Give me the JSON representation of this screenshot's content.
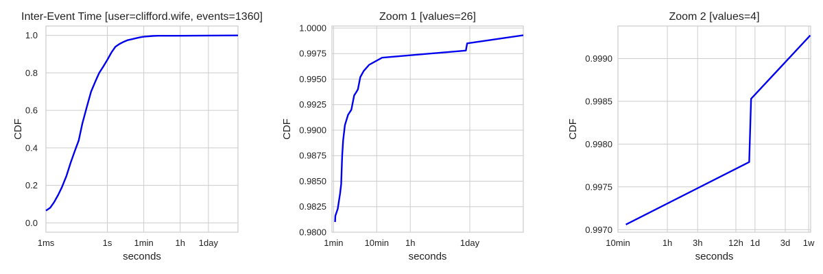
{
  "chart_data": [
    {
      "type": "line",
      "title": "Inter-Event Time [user=clifford.wife, events=1360]",
      "xlabel": "seconds",
      "ylabel": "CDF",
      "x_scale": "log",
      "xlim": [
        0.001,
        2400000
      ],
      "ylim": [
        -0.05,
        1.05
      ],
      "x_ticks": [
        {
          "label": "1ms",
          "value": 0.001
        },
        {
          "label": "1s",
          "value": 1
        },
        {
          "label": "1min",
          "value": 60
        },
        {
          "label": "1h",
          "value": 3600
        },
        {
          "label": "1day",
          "value": 86400
        }
      ],
      "y_ticks": [
        {
          "label": "0.0",
          "value": 0.0
        },
        {
          "label": "0.2",
          "value": 0.2
        },
        {
          "label": "0.4",
          "value": 0.4
        },
        {
          "label": "0.6",
          "value": 0.6
        },
        {
          "label": "0.8",
          "value": 0.8
        },
        {
          "label": "1.0",
          "value": 1.0
        }
      ],
      "grid": true,
      "color": "#0000ee",
      "series": [
        {
          "x": [
            0.001,
            0.0016,
            0.0025,
            0.004,
            0.006,
            0.01,
            0.016,
            0.025,
            0.04,
            0.06,
            0.1,
            0.16,
            0.25,
            0.3,
            0.4,
            0.6,
            1.0,
            1.6,
            2.5,
            4,
            6,
            10,
            16,
            25,
            40,
            60,
            100,
            160,
            300,
            600,
            1000,
            3600,
            86400,
            2400000
          ],
          "y": [
            0.065,
            0.08,
            0.11,
            0.15,
            0.19,
            0.25,
            0.32,
            0.38,
            0.44,
            0.53,
            0.62,
            0.7,
            0.75,
            0.77,
            0.8,
            0.83,
            0.87,
            0.91,
            0.94,
            0.955,
            0.965,
            0.975,
            0.98,
            0.985,
            0.99,
            0.993,
            0.995,
            0.997,
            0.998,
            0.998,
            0.998,
            0.998,
            0.999,
            1.0
          ]
        }
      ]
    },
    {
      "type": "line",
      "title": "Zoom 1 [values=26]",
      "xlabel": "seconds",
      "ylabel": "CDF",
      "x_scale": "log",
      "xlim": [
        55,
        1500000
      ],
      "ylim": [
        0.98,
        1.0002
      ],
      "x_ticks": [
        {
          "label": "1min",
          "value": 60
        },
        {
          "label": "10min",
          "value": 600
        },
        {
          "label": "1h",
          "value": 3600
        },
        {
          "label": "1day",
          "value": 86400
        }
      ],
      "y_ticks": [
        {
          "label": "0.9800",
          "value": 0.98
        },
        {
          "label": "0.9825",
          "value": 0.9825
        },
        {
          "label": "0.9850",
          "value": 0.985
        },
        {
          "label": "0.9875",
          "value": 0.9875
        },
        {
          "label": "0.9900",
          "value": 0.99
        },
        {
          "label": "0.9925",
          "value": 0.9925
        },
        {
          "label": "0.9950",
          "value": 0.995
        },
        {
          "label": "0.9975",
          "value": 0.9975
        },
        {
          "label": "1.0000",
          "value": 1.0
        }
      ],
      "grid": true,
      "color": "#0000ee",
      "series": [
        {
          "x": [
            65,
            66,
            75,
            85,
            90,
            95,
            100,
            110,
            130,
            155,
            180,
            200,
            220,
            250,
            300,
            400,
            800,
            70000,
            75000,
            1500000
          ],
          "y": [
            0.981,
            0.9816,
            0.9823,
            0.9838,
            0.9847,
            0.9875,
            0.989,
            0.9905,
            0.9915,
            0.992,
            0.9934,
            0.9937,
            0.994,
            0.9952,
            0.9958,
            0.9964,
            0.9971,
            0.9978,
            0.9985,
            0.9993
          ]
        }
      ]
    },
    {
      "type": "line",
      "title": "Zoom 2 [values=4]",
      "xlabel": "seconds",
      "ylabel": "CDF",
      "x_scale": "log",
      "xlim": [
        600,
        650000
      ],
      "ylim": [
        0.99697,
        0.99938
      ],
      "x_ticks": [
        {
          "label": "10min",
          "value": 600
        },
        {
          "label": "1h",
          "value": 3600
        },
        {
          "label": "3h",
          "value": 10800
        },
        {
          "label": "12h",
          "value": 43200
        },
        {
          "label": "1d",
          "value": 86400
        },
        {
          "label": "3d",
          "value": 259200
        },
        {
          "label": "1w",
          "value": 604800
        }
      ],
      "y_ticks": [
        {
          "label": "0.9970",
          "value": 0.997
        },
        {
          "label": "0.9975",
          "value": 0.9975
        },
        {
          "label": "0.9980",
          "value": 0.998
        },
        {
          "label": "0.9985",
          "value": 0.9985
        },
        {
          "label": "0.9990",
          "value": 0.999
        }
      ],
      "grid": true,
      "color": "#0000ee",
      "series": [
        {
          "x": [
            800,
            70000,
            75000,
            640000
          ],
          "y": [
            0.99706,
            0.99779,
            0.99853,
            0.99927
          ]
        }
      ]
    }
  ]
}
